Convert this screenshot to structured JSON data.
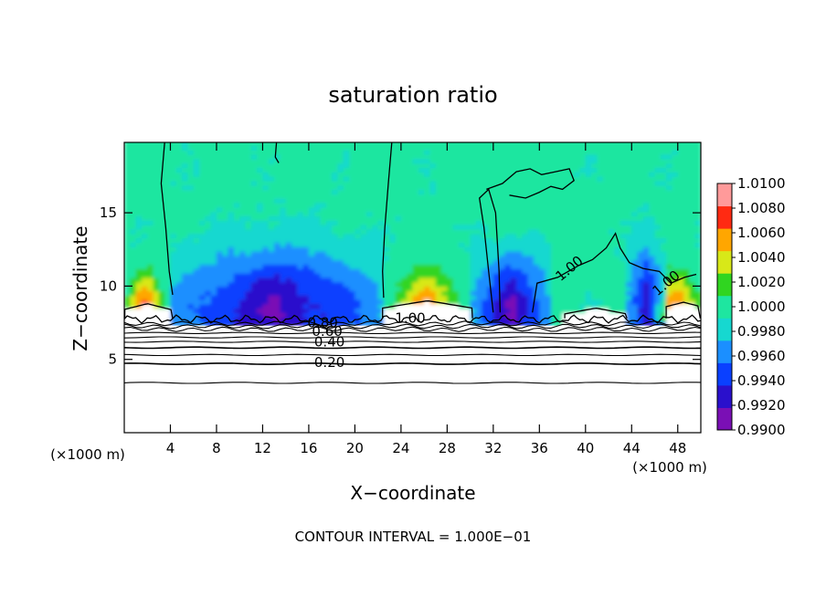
{
  "chart_data": {
    "type": "heatmap",
    "title": "saturation ratio",
    "xlabel": "X−coordinate",
    "ylabel": "Z−coordinate",
    "x_unit_left": "(×1000 m)",
    "x_unit_right": "(×1000 m)",
    "xlim": [
      0,
      50
    ],
    "ylim": [
      0,
      19.8
    ],
    "x_ticks": [
      4,
      8,
      12,
      16,
      20,
      24,
      28,
      32,
      36,
      40,
      44,
      48
    ],
    "y_ticks": [
      5,
      10,
      15
    ],
    "footer": "CONTOUR INTERVAL = 1.000E−01",
    "colorbar": {
      "levels": [
        0.99,
        0.992,
        0.994,
        0.996,
        0.998,
        1.0,
        1.002,
        1.004,
        1.006,
        1.008,
        1.01
      ],
      "labels": [
        "0.9900",
        "0.9920",
        "0.9940",
        "0.9960",
        "0.9980",
        "1.0000",
        "1.0020",
        "1.0040",
        "1.0060",
        "1.0080",
        "1.0100"
      ],
      "colors": [
        "#7a0fb5",
        "#2a10cc",
        "#0a40ff",
        "#1b8fff",
        "#16d8d0",
        "#1ee6a0",
        "#30d520",
        "#d8e818",
        "#ffa600",
        "#ff2a12",
        "#ff9a9a"
      ]
    },
    "contour_labels": [
      {
        "text": "0.20",
        "x": 17.8,
        "z": 4.8
      },
      {
        "text": "0.40",
        "x": 17.8,
        "z": 6.2
      },
      {
        "text": "0.60",
        "x": 17.6,
        "z": 6.9
      },
      {
        "text": "0.80",
        "x": 17.2,
        "z": 7.5
      },
      {
        "text": "1.00",
        "x": 24.8,
        "z": 7.8
      },
      {
        "text": "1.00",
        "x": 38.6,
        "z": 11.2
      },
      {
        "text": "1.00",
        "x": 47.0,
        "z": 10.2
      }
    ],
    "clear_regions_x": [
      [
        0,
        4.2
      ],
      [
        22.4,
        30.2
      ],
      [
        38.2,
        43.6
      ],
      [
        47.0,
        50
      ]
    ],
    "warm_cores_x": [
      [
        0,
        3.6
      ],
      [
        23.4,
        29.0
      ],
      [
        45.2,
        50
      ]
    ],
    "dry_bands_x": [
      [
        4.0,
        22.4
      ],
      [
        30.2,
        37.0
      ],
      [
        43.6,
        47.0
      ]
    ]
  }
}
